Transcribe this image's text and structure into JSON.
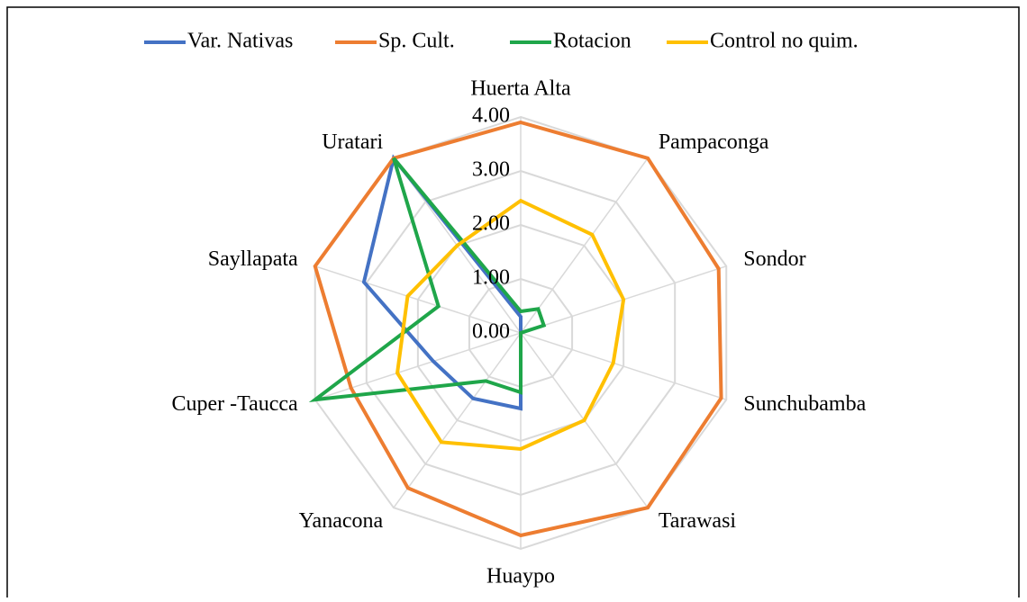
{
  "chart_data": {
    "type": "radar",
    "categories": [
      "Huerta Alta",
      "Pampaconga",
      "Sondor",
      "Sunchubamba",
      "Tarawasi",
      "Huaypo",
      "Yanacona",
      "Cuper -Taucca",
      "Sayllapata",
      "Uratari"
    ],
    "series": [
      {
        "name": "Var. Nativas",
        "color": "#4472c4",
        "values": [
          0.3,
          0,
          0,
          0,
          0,
          1.4,
          1.5,
          1.7,
          3.05,
          4.0
        ]
      },
      {
        "name": "Sp. Cult.",
        "color": "#ed7d31",
        "values": [
          3.9,
          4.0,
          3.85,
          3.9,
          4.0,
          3.75,
          3.55,
          3.3,
          4.0,
          4.0
        ]
      },
      {
        "name": "Rotacion",
        "color": "#1fa64a",
        "values": [
          0.4,
          0.55,
          0.45,
          0,
          0,
          1.1,
          1.1,
          4.0,
          1.6,
          4.0
        ]
      },
      {
        "name": "Control no quim.",
        "color": "#ffc000",
        "values": [
          2.45,
          2.25,
          2.0,
          1.8,
          2.0,
          2.15,
          2.5,
          2.4,
          2.2,
          2.0
        ]
      }
    ],
    "ylim": [
      0,
      4
    ],
    "yticks": [
      {
        "value": 0,
        "label": "0.00"
      },
      {
        "value": 1,
        "label": "1.00"
      },
      {
        "value": 2,
        "label": "2.00"
      },
      {
        "value": 3,
        "label": "3.00"
      },
      {
        "value": 4,
        "label": "4.00"
      }
    ],
    "grid": true,
    "legend": "top"
  }
}
